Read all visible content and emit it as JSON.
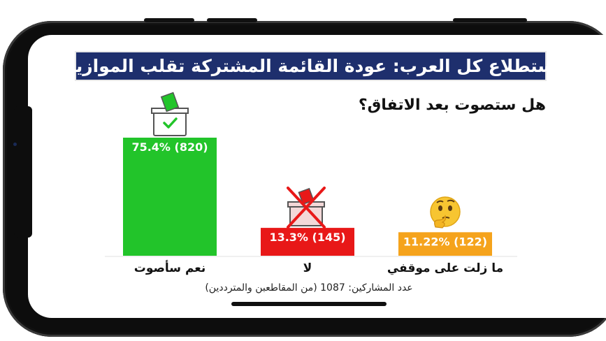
{
  "title": "استطلاع كل العرب: عودة القائمة المشتركة تقلب الموازين",
  "question": "هل ستصوت بعد الاتفاق؟",
  "footnote": "عدد المشاركين: 1087 (من المقاطعبن والمترددين)",
  "colors": {
    "banner": "#1e2f6d",
    "yes": "#22c42a",
    "no": "#e81818",
    "undecided": "#f5a31c"
  },
  "icons": {
    "yes": "ballot-box-check-icon",
    "no": "ballot-box-crossed-icon",
    "undecided": "thinking-face-icon"
  },
  "chart_data": {
    "type": "bar",
    "title": "",
    "xlabel": "",
    "ylabel": "",
    "categories": [
      "نعم سأصوت",
      "لا",
      "ما زلت على موقفي"
    ],
    "values": [
      75.4,
      13.3,
      11.22
    ],
    "counts": [
      820,
      145,
      122
    ],
    "labels": [
      "75.4% (820)",
      "13.3% (145)",
      "11.22% (122)"
    ],
    "ylim": [
      0,
      100
    ],
    "grid": false,
    "legend": "none"
  }
}
